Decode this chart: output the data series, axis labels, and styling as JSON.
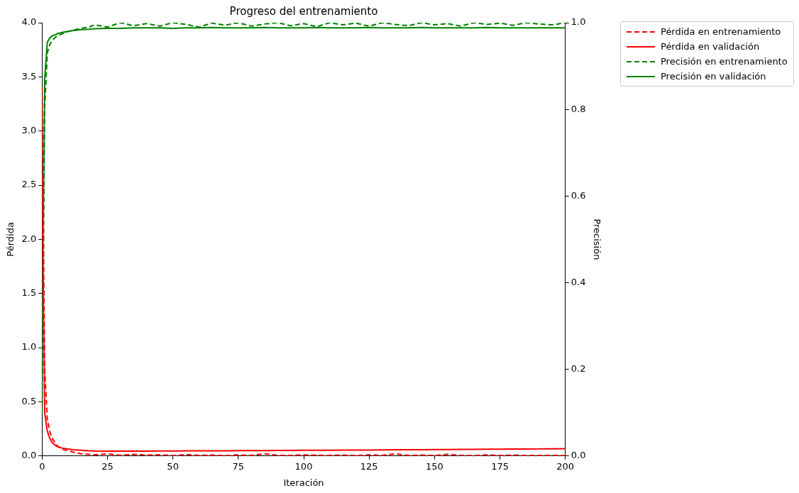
{
  "chart_data": {
    "type": "line",
    "title": "Progreso del entrenamiento",
    "xlabel": "Iteración",
    "ylabel": "Pérdida",
    "y2label": "Precisión",
    "xlim": [
      0,
      200
    ],
    "xticks": [
      0,
      25,
      50,
      75,
      100,
      125,
      150,
      175,
      200
    ],
    "ylim": [
      0,
      4
    ],
    "yticks": [
      {
        "value": 0,
        "label": "0.0"
      },
      {
        "value": 0.5,
        "label": "0.5"
      },
      {
        "value": 1,
        "label": "1.0"
      },
      {
        "value": 1.5,
        "label": "1.5"
      },
      {
        "value": 2,
        "label": "2.0"
      },
      {
        "value": 2.5,
        "label": "2.5"
      },
      {
        "value": 3,
        "label": "3.0"
      },
      {
        "value": 3.5,
        "label": "3.5"
      },
      {
        "value": 4,
        "label": "4.0"
      }
    ],
    "y2lim": [
      0,
      1
    ],
    "y2ticks": [
      {
        "value": 0,
        "label": "0.0"
      },
      0.2,
      0.4,
      0.6,
      0.8,
      {
        "value": 1,
        "label": "1.0"
      }
    ],
    "grid": false,
    "legend": "right",
    "marker": "none",
    "x": [
      0,
      1,
      2,
      3,
      4,
      5,
      6,
      8,
      10,
      12,
      15,
      18,
      20,
      25,
      30,
      35,
      40,
      45,
      50,
      55,
      60,
      65,
      70,
      75,
      80,
      85,
      90,
      95,
      100,
      105,
      110,
      115,
      120,
      125,
      130,
      135,
      140,
      145,
      150,
      155,
      160,
      165,
      170,
      175,
      180,
      185,
      190,
      195,
      200
    ],
    "series": [
      {
        "name": "Pérdida en entrenamiento",
        "color": "#ff0000",
        "line_style": "dashed",
        "values": [
          3.4,
          0.8,
          0.34,
          0.22,
          0.16,
          0.12,
          0.09,
          0.06,
          0.05,
          0.035,
          0.02,
          0.015,
          0.01,
          0.02,
          0.005,
          0.015,
          0.008,
          0.01,
          0.004,
          0.012,
          0.006,
          0.008,
          0.003,
          0.01,
          0.005,
          0.02,
          0.006,
          0.004,
          0.01,
          0.007,
          0.005,
          0.009,
          0.004,
          0.01,
          0.006,
          0.02,
          0.005,
          0.008,
          0.004,
          0.015,
          0.006,
          0.003,
          0.01,
          0.005,
          0.008,
          0.004,
          0.006,
          0.005,
          0.004
        ]
      },
      {
        "name": "Pérdida en validación",
        "color": "#ff0000",
        "line_style": "solid",
        "values": [
          2.6,
          0.4,
          0.23,
          0.16,
          0.12,
          0.1,
          0.085,
          0.07,
          0.065,
          0.058,
          0.052,
          0.048,
          0.046,
          0.045,
          0.045,
          0.044,
          0.045,
          0.046,
          0.046,
          0.047,
          0.047,
          0.048,
          0.048,
          0.049,
          0.05,
          0.05,
          0.051,
          0.051,
          0.052,
          0.053,
          0.053,
          0.054,
          0.055,
          0.055,
          0.056,
          0.057,
          0.057,
          0.058,
          0.059,
          0.06,
          0.061,
          0.061,
          0.062,
          0.063,
          0.064,
          0.064,
          0.065,
          0.066,
          0.067
        ]
      },
      {
        "name": "Precisión en entrenamiento",
        "color": "#008000",
        "line_style": "dashed",
        "axis": "y2",
        "values": [
          0.1,
          0.8,
          0.93,
          0.95,
          0.96,
          0.966,
          0.97,
          0.975,
          0.98,
          0.983,
          0.987,
          0.99,
          0.995,
          0.99,
          1.0,
          0.993,
          0.998,
          0.992,
          1.0,
          0.996,
          0.99,
          0.999,
          0.994,
          1.0,
          0.992,
          0.997,
          1.0,
          0.993,
          0.998,
          0.991,
          1.0,
          0.995,
          0.999,
          0.992,
          1.0,
          0.996,
          0.993,
          1.0,
          0.995,
          0.998,
          0.992,
          1.0,
          0.996,
          0.999,
          0.994,
          1.0,
          0.997,
          0.995,
          1.0
        ]
      },
      {
        "name": "Precisión en validación",
        "color": "#008000",
        "line_style": "solid",
        "axis": "y2",
        "values": [
          0.3,
          0.87,
          0.955,
          0.965,
          0.97,
          0.972,
          0.975,
          0.978,
          0.98,
          0.982,
          0.984,
          0.985,
          0.986,
          0.987,
          0.987,
          0.988,
          0.988,
          0.988,
          0.987,
          0.988,
          0.988,
          0.989,
          0.988,
          0.988,
          0.988,
          0.989,
          0.988,
          0.988,
          0.988,
          0.989,
          0.988,
          0.988,
          0.988,
          0.989,
          0.988,
          0.988,
          0.988,
          0.989,
          0.988,
          0.988,
          0.988,
          0.988,
          0.989,
          0.988,
          0.988,
          0.988,
          0.988,
          0.988,
          0.988
        ]
      }
    ]
  }
}
